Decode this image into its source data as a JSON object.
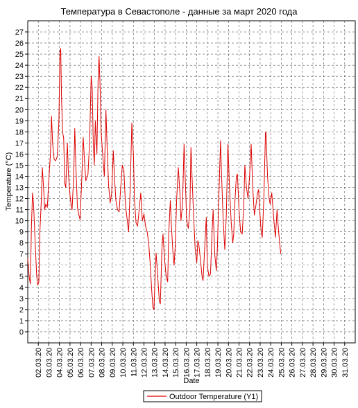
{
  "chart_data": {
    "type": "line",
    "title": "Температура в Севастополе - данные за март 2020 года",
    "xlabel": "Date",
    "ylabel": "Temperature (°C)",
    "ylim": [
      -1,
      28
    ],
    "yticks": [
      0,
      1,
      2,
      3,
      4,
      5,
      6,
      7,
      8,
      9,
      10,
      11,
      12,
      13,
      14,
      15,
      16,
      17,
      18,
      19,
      20,
      21,
      22,
      23,
      24,
      25,
      26,
      27
    ],
    "x_start": "01.03.20",
    "xlim_days": [
      1.0,
      32.0
    ],
    "xtick_labels": [
      "02.03.20",
      "03.03.20",
      "04.03.20",
      "05.03.20",
      "06.03.20",
      "07.03.20",
      "08.03.20",
      "09.03.20",
      "10.03.20",
      "11.03.20",
      "12.03.20",
      "13.03.20",
      "14.03.20",
      "15.03.20",
      "16.03.20",
      "17.03.20",
      "18.03.20",
      "19.03.20",
      "20.03.20",
      "21.03.20",
      "22.03.20",
      "23.03.20",
      "24.03.20",
      "25.03.20",
      "26.03.20",
      "27.03.20",
      "28.03.20",
      "29.03.20",
      "30.03.20",
      "31.03.20"
    ],
    "grid": true,
    "legend_position": "bottom-center",
    "series": [
      {
        "name": "Outdoor Temperature (Y1)",
        "color": "#dd0000",
        "points": [
          [
            1.0,
            6.6
          ],
          [
            1.15,
            4.8
          ],
          [
            1.25,
            4.3
          ],
          [
            1.35,
            9.5
          ],
          [
            1.45,
            12.5
          ],
          [
            1.55,
            11.5
          ],
          [
            1.7,
            8.0
          ],
          [
            1.85,
            5.0
          ],
          [
            1.95,
            4.2
          ],
          [
            2.05,
            4.5
          ],
          [
            2.15,
            9.0
          ],
          [
            2.3,
            12.2
          ],
          [
            2.38,
            14.8
          ],
          [
            2.5,
            13.0
          ],
          [
            2.6,
            11.0
          ],
          [
            2.7,
            11.5
          ],
          [
            2.85,
            11.2
          ],
          [
            3.0,
            13.8
          ],
          [
            3.15,
            16.0
          ],
          [
            3.25,
            19.4
          ],
          [
            3.35,
            17.0
          ],
          [
            3.5,
            15.5
          ],
          [
            3.65,
            15.4
          ],
          [
            3.8,
            15.8
          ],
          [
            3.95,
            19.0
          ],
          [
            4.05,
            25.2
          ],
          [
            4.12,
            25.5
          ],
          [
            4.2,
            21.0
          ],
          [
            4.3,
            18.0
          ],
          [
            4.4,
            17.4
          ],
          [
            4.5,
            13.4
          ],
          [
            4.6,
            13.0
          ],
          [
            4.75,
            17.0
          ],
          [
            4.85,
            14.2
          ],
          [
            5.0,
            12.3
          ],
          [
            5.1,
            11.5
          ],
          [
            5.2,
            11.0
          ],
          [
            5.35,
            14.0
          ],
          [
            5.45,
            18.3
          ],
          [
            5.55,
            15.0
          ],
          [
            5.7,
            11.2
          ],
          [
            5.85,
            10.5
          ],
          [
            5.95,
            10.1
          ],
          [
            6.1,
            13.5
          ],
          [
            6.25,
            17.5
          ],
          [
            6.4,
            15.0
          ],
          [
            6.5,
            13.6
          ],
          [
            6.7,
            14.2
          ],
          [
            6.85,
            17.0
          ],
          [
            7.0,
            23.0
          ],
          [
            7.1,
            22.0
          ],
          [
            7.2,
            17.0
          ],
          [
            7.3,
            15.0
          ],
          [
            7.4,
            19.0
          ],
          [
            7.55,
            16.0
          ],
          [
            7.65,
            22.5
          ],
          [
            7.75,
            24.8
          ],
          [
            7.85,
            22.0
          ],
          [
            7.95,
            18.0
          ],
          [
            8.1,
            15.8
          ],
          [
            8.25,
            14.0
          ],
          [
            8.4,
            20.0
          ],
          [
            8.5,
            17.0
          ],
          [
            8.65,
            13.2
          ],
          [
            8.8,
            11.6
          ],
          [
            8.95,
            12.5
          ],
          [
            9.1,
            16.3
          ],
          [
            9.2,
            14.0
          ],
          [
            9.35,
            11.8
          ],
          [
            9.5,
            11.0
          ],
          [
            9.65,
            10.8
          ],
          [
            9.8,
            13.0
          ],
          [
            9.95,
            15.0
          ],
          [
            10.1,
            14.5
          ],
          [
            10.25,
            11.5
          ],
          [
            10.4,
            10.2
          ],
          [
            10.55,
            9.0
          ],
          [
            10.7,
            13.0
          ],
          [
            10.85,
            18.8
          ],
          [
            11.0,
            16.0
          ],
          [
            11.1,
            12.0
          ],
          [
            11.25,
            9.8
          ],
          [
            11.4,
            9.5
          ],
          [
            11.55,
            11.0
          ],
          [
            11.7,
            12.5
          ],
          [
            11.85,
            10.0
          ],
          [
            12.0,
            10.6
          ],
          [
            12.15,
            9.5
          ],
          [
            12.3,
            9.0
          ],
          [
            12.45,
            8.0
          ],
          [
            12.6,
            6.0
          ],
          [
            12.75,
            3.5
          ],
          [
            12.85,
            2.2
          ],
          [
            12.95,
            2.0
          ],
          [
            13.05,
            5.0
          ],
          [
            13.15,
            7.1
          ],
          [
            13.3,
            5.0
          ],
          [
            13.45,
            2.8
          ],
          [
            13.55,
            2.5
          ],
          [
            13.7,
            7.5
          ],
          [
            13.8,
            8.8
          ],
          [
            13.95,
            6.5
          ],
          [
            14.1,
            5.0
          ],
          [
            14.25,
            4.5
          ],
          [
            14.35,
            9.0
          ],
          [
            14.5,
            11.8
          ],
          [
            14.6,
            9.5
          ],
          [
            14.75,
            7.0
          ],
          [
            14.85,
            6.0
          ],
          [
            14.95,
            7.5
          ],
          [
            15.1,
            12.0
          ],
          [
            15.25,
            14.8
          ],
          [
            15.4,
            12.5
          ],
          [
            15.5,
            10.0
          ],
          [
            15.65,
            11.5
          ],
          [
            15.8,
            16.9
          ],
          [
            15.9,
            14.0
          ],
          [
            16.05,
            10.0
          ],
          [
            16.2,
            9.3
          ],
          [
            16.35,
            11.0
          ],
          [
            16.45,
            16.6
          ],
          [
            16.55,
            14.0
          ],
          [
            16.7,
            10.5
          ],
          [
            16.85,
            7.5
          ],
          [
            17.0,
            6.2
          ],
          [
            17.1,
            8.2
          ],
          [
            17.2,
            7.8
          ],
          [
            17.35,
            6.5
          ],
          [
            17.5,
            5.0
          ],
          [
            17.6,
            4.6
          ],
          [
            17.75,
            7.5
          ],
          [
            17.9,
            10.3
          ],
          [
            18.0,
            6.0
          ],
          [
            18.15,
            5.0
          ],
          [
            18.3,
            5.2
          ],
          [
            18.45,
            9.0
          ],
          [
            18.55,
            11.0
          ],
          [
            18.7,
            7.0
          ],
          [
            18.85,
            5.5
          ],
          [
            18.95,
            7.5
          ],
          [
            19.1,
            12.5
          ],
          [
            19.25,
            17.2
          ],
          [
            19.35,
            14.0
          ],
          [
            19.5,
            10.0
          ],
          [
            19.65,
            7.4
          ],
          [
            19.8,
            10.5
          ],
          [
            19.95,
            16.9
          ],
          [
            20.1,
            13.0
          ],
          [
            20.25,
            10.0
          ],
          [
            20.4,
            8.0
          ],
          [
            20.5,
            8.8
          ],
          [
            20.6,
            11.5
          ],
          [
            20.75,
            14.0
          ],
          [
            20.85,
            14.2
          ],
          [
            21.0,
            11.0
          ],
          [
            21.15,
            9.0
          ],
          [
            21.3,
            8.8
          ],
          [
            21.45,
            11.5
          ],
          [
            21.55,
            15.0
          ],
          [
            21.7,
            13.0
          ],
          [
            21.85,
            12.0
          ],
          [
            22.0,
            14.0
          ],
          [
            22.15,
            16.9
          ],
          [
            22.3,
            13.0
          ],
          [
            22.45,
            10.5
          ],
          [
            22.6,
            11.4
          ],
          [
            22.75,
            12.5
          ],
          [
            22.85,
            12.8
          ],
          [
            22.95,
            11.0
          ],
          [
            23.1,
            9.0
          ],
          [
            23.2,
            8.5
          ],
          [
            23.35,
            12.0
          ],
          [
            23.5,
            17.9
          ],
          [
            23.55,
            18.0
          ],
          [
            23.7,
            14.0
          ],
          [
            23.85,
            12.0
          ],
          [
            23.95,
            11.5
          ],
          [
            24.1,
            12.5
          ],
          [
            24.3,
            10.0
          ],
          [
            24.45,
            8.5
          ],
          [
            24.6,
            11.0
          ],
          [
            24.75,
            9.0
          ],
          [
            24.85,
            8.0
          ],
          [
            24.95,
            7.0
          ]
        ]
      }
    ]
  },
  "legend": {
    "label": "Outdoor Temperature (Y1)"
  }
}
